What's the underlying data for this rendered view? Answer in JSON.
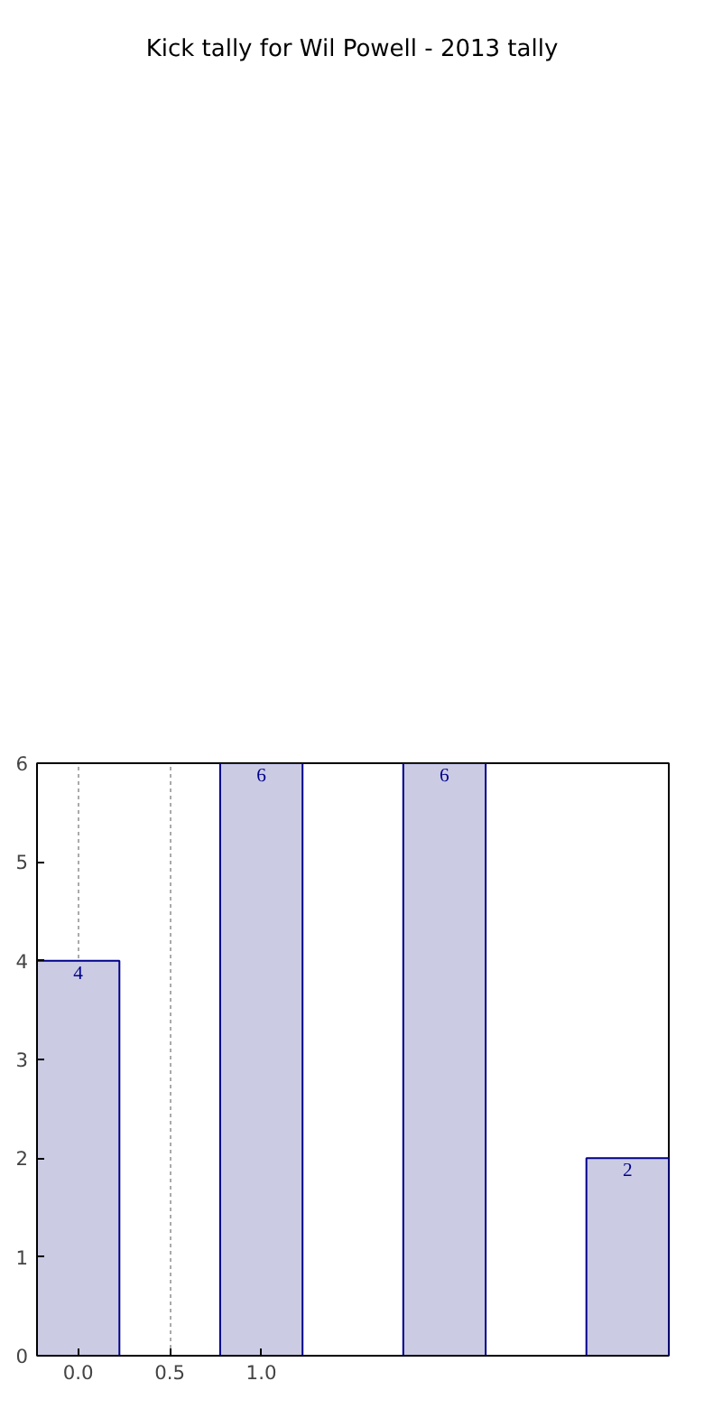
{
  "chart_data": {
    "type": "bar",
    "title": "Kick tally for Wil Powell - 2013 tally",
    "x": [
      0,
      1,
      2,
      3
    ],
    "values": [
      4,
      6,
      6,
      2
    ],
    "color": "#cbcbe4",
    "xlim": [
      -0.225,
      3.225
    ],
    "xticks": [
      {
        "value": 0,
        "label": "0.0"
      },
      {
        "value": 0.5,
        "label": "0.5"
      },
      {
        "value": 1,
        "label": "1.0"
      }
    ],
    "ylim": [
      0,
      6
    ],
    "yticks": [
      0,
      1,
      2,
      3,
      4,
      5,
      6
    ],
    "grid": "x",
    "data_labels": true
  }
}
